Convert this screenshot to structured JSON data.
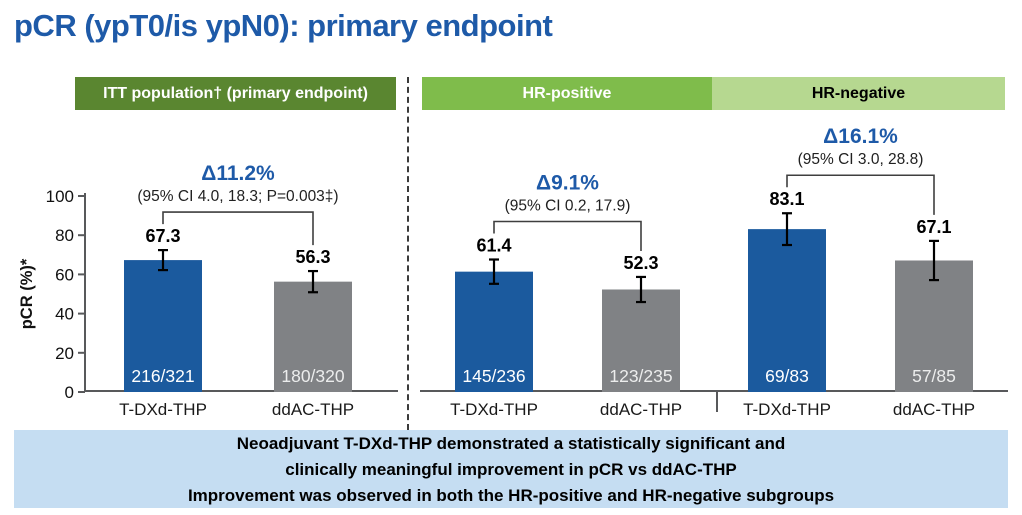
{
  "title": "pCR (ypT0/is ypN0): primary endpoint",
  "colors": {
    "accent_blue": "#1e5aa8",
    "bar_blue": "#1b5a9e",
    "bar_gray": "#808285",
    "axis_gray": "#58595b",
    "annotation_dark": "#3f3f3f",
    "summary_bg": "#c5ddf2",
    "itt_green": "#5a8630",
    "hr_pos_green": "#7fbc4b",
    "hr_neg_green": "#b6d890"
  },
  "panels": [
    {
      "label": "ITT population† (primary endpoint)",
      "color": "#5a8630",
      "text_color": "#ffffff"
    },
    {
      "label": "HR-positive",
      "color": "#7fbc4b",
      "text_color": "#ffffff"
    },
    {
      "label": "HR-negative",
      "color": "#b6d890",
      "text_color": "#000000"
    }
  ],
  "chart_data": [
    {
      "type": "bar",
      "group": "ITT population (primary endpoint)",
      "categories": [
        "T-DXd-THP",
        "ddAC-THP"
      ],
      "values": [
        67.3,
        56.3
      ],
      "fractions": [
        "216/321",
        "180/320"
      ],
      "err95": [
        5.1,
        5.4
      ],
      "delta": "Δ11.2%",
      "ci": "(95% CI 4.0, 18.3; P=0.003‡)",
      "ylabel": "pCR (%)*",
      "ylim": [
        0,
        100
      ],
      "yticks": [
        0,
        20,
        40,
        60,
        80,
        100
      ],
      "grid": false,
      "legend": "none"
    },
    {
      "type": "bar",
      "group": "HR-positive",
      "categories": [
        "T-DXd-THP",
        "ddAC-THP"
      ],
      "values": [
        61.4,
        52.3
      ],
      "fractions": [
        "145/236",
        "123/235"
      ],
      "err95": [
        6.2,
        6.4
      ],
      "delta": "Δ9.1%",
      "ci": "(95% CI 0.2, 17.9)",
      "ylim": [
        0,
        100
      ],
      "grid": false,
      "legend": "none"
    },
    {
      "type": "bar",
      "group": "HR-negative",
      "categories": [
        "T-DXd-THP",
        "ddAC-THP"
      ],
      "values": [
        83.1,
        67.1
      ],
      "fractions": [
        "69/83",
        "57/85"
      ],
      "err95": [
        8.1,
        10.0
      ],
      "delta": "Δ16.1%",
      "ci": "(95% CI 3.0, 28.8)",
      "ylim": [
        0,
        100
      ],
      "grid": false,
      "legend": "none"
    }
  ],
  "summary": {
    "lines": [
      "Neoadjuvant T-DXd-THP demonstrated a statistically significant and",
      "clinically meaningful improvement in pCR vs ddAC-THP",
      "Improvement was observed in both the HR-positive and HR-negative subgroups"
    ]
  }
}
